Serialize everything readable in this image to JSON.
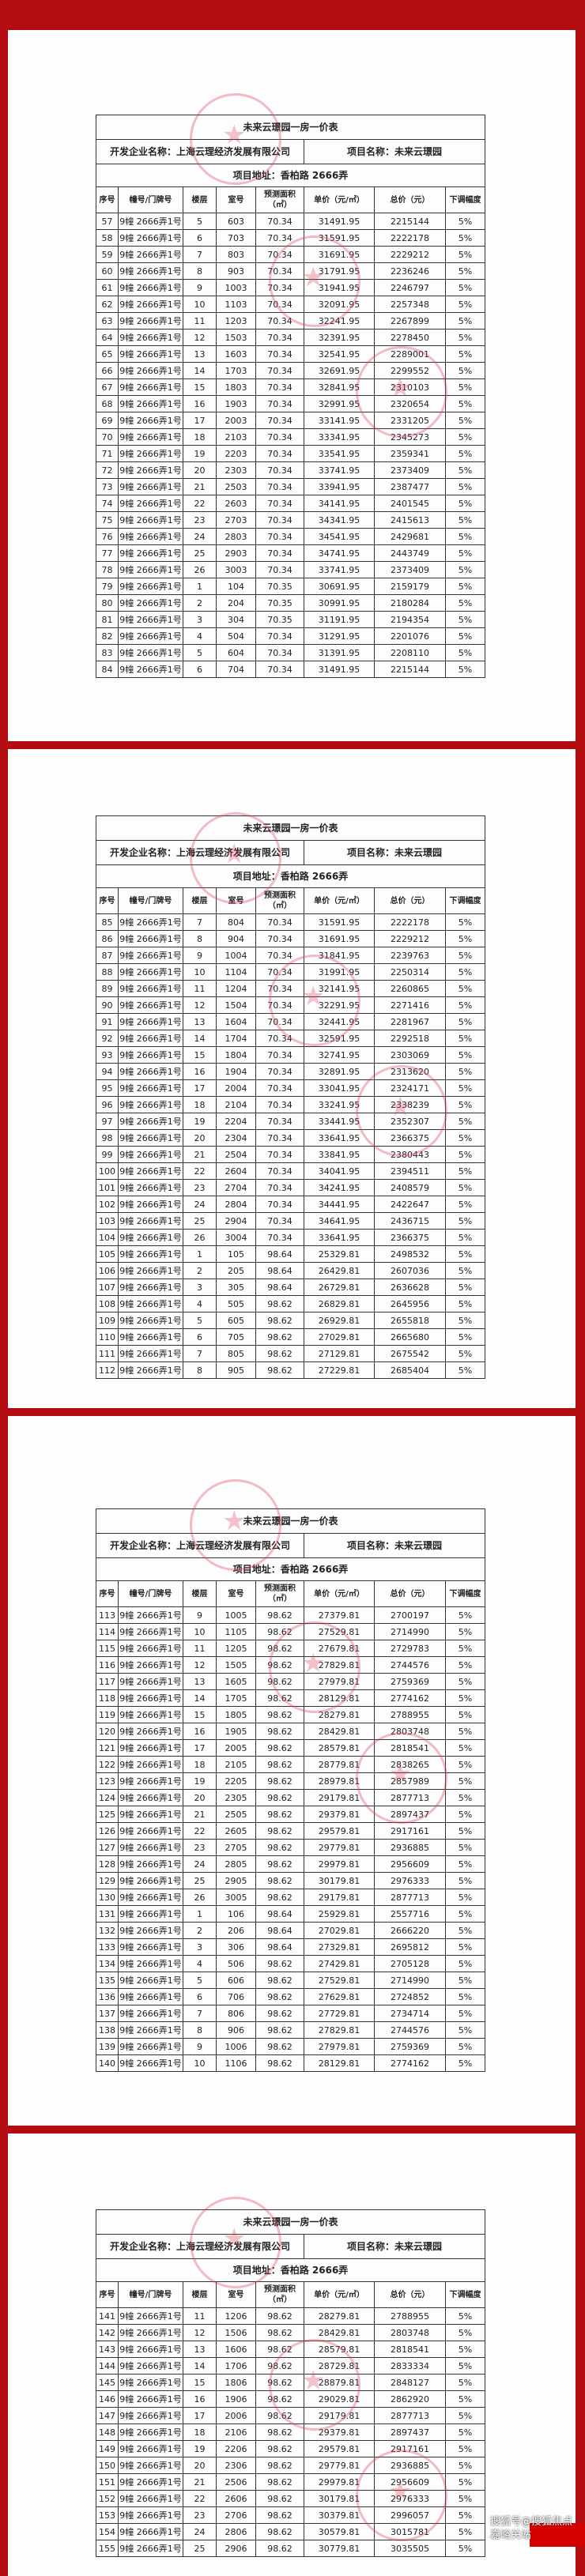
{
  "doc": {
    "title": "未来云璟园一房一价表",
    "developer": "开发企业名称：上海云理经济发展有限公司",
    "project": "项目名称：未来云璟园",
    "address": "项目地址：香柏路 2666弄",
    "columns": [
      "序号",
      "幢号/门牌号",
      "楼层",
      "室号",
      "预测面积（㎡）",
      "单价（元/㎡）",
      "总价（元）",
      "下调幅度"
    ]
  },
  "watermark": "搜狐号@搜狐焦点嘉峪关站",
  "colors": {
    "background": "#b30c10",
    "stamp": "#dc3c50"
  },
  "pages": [
    {
      "rows": [
        [
          "57",
          "9幢 2666弄1号",
          "5",
          "603",
          "70.34",
          "31491.95",
          "2215144",
          "5%"
        ],
        [
          "58",
          "9幢 2666弄1号",
          "6",
          "703",
          "70.34",
          "31591.95",
          "2222178",
          "5%"
        ],
        [
          "59",
          "9幢 2666弄1号",
          "7",
          "803",
          "70.34",
          "31691.95",
          "2229212",
          "5%"
        ],
        [
          "60",
          "9幢 2666弄1号",
          "8",
          "903",
          "70.34",
          "31791.95",
          "2236246",
          "5%"
        ],
        [
          "61",
          "9幢 2666弄1号",
          "9",
          "1003",
          "70.34",
          "31941.95",
          "2246797",
          "5%"
        ],
        [
          "62",
          "9幢 2666弄1号",
          "10",
          "1103",
          "70.34",
          "32091.95",
          "2257348",
          "5%"
        ],
        [
          "63",
          "9幢 2666弄1号",
          "11",
          "1203",
          "70.34",
          "32241.95",
          "2267899",
          "5%"
        ],
        [
          "64",
          "9幢 2666弄1号",
          "12",
          "1503",
          "70.34",
          "32391.95",
          "2278450",
          "5%"
        ],
        [
          "65",
          "9幢 2666弄1号",
          "13",
          "1603",
          "70.34",
          "32541.95",
          "2289001",
          "5%"
        ],
        [
          "66",
          "9幢 2666弄1号",
          "14",
          "1703",
          "70.34",
          "32691.95",
          "2299552",
          "5%"
        ],
        [
          "67",
          "9幢 2666弄1号",
          "15",
          "1803",
          "70.34",
          "32841.95",
          "2310103",
          "5%"
        ],
        [
          "68",
          "9幢 2666弄1号",
          "16",
          "1903",
          "70.34",
          "32991.95",
          "2320654",
          "5%"
        ],
        [
          "69",
          "9幢 2666弄1号",
          "17",
          "2003",
          "70.34",
          "33141.95",
          "2331205",
          "5%"
        ],
        [
          "70",
          "9幢 2666弄1号",
          "18",
          "2103",
          "70.34",
          "33341.95",
          "2345273",
          "5%"
        ],
        [
          "71",
          "9幢 2666弄1号",
          "19",
          "2203",
          "70.34",
          "33541.95",
          "2359341",
          "5%"
        ],
        [
          "72",
          "9幢 2666弄1号",
          "20",
          "2303",
          "70.34",
          "33741.95",
          "2373409",
          "5%"
        ],
        [
          "73",
          "9幢 2666弄1号",
          "21",
          "2503",
          "70.34",
          "33941.95",
          "2387477",
          "5%"
        ],
        [
          "74",
          "9幢 2666弄1号",
          "22",
          "2603",
          "70.34",
          "34141.95",
          "2401545",
          "5%"
        ],
        [
          "75",
          "9幢 2666弄1号",
          "23",
          "2703",
          "70.34",
          "34341.95",
          "2415613",
          "5%"
        ],
        [
          "76",
          "9幢 2666弄1号",
          "24",
          "2803",
          "70.34",
          "34541.95",
          "2429681",
          "5%"
        ],
        [
          "77",
          "9幢 2666弄1号",
          "25",
          "2903",
          "70.34",
          "34741.95",
          "2443749",
          "5%"
        ],
        [
          "78",
          "9幢 2666弄1号",
          "26",
          "3003",
          "70.34",
          "33741.95",
          "2373409",
          "5%"
        ],
        [
          "79",
          "9幢 2666弄1号",
          "1",
          "104",
          "70.35",
          "30691.95",
          "2159179",
          "5%"
        ],
        [
          "80",
          "9幢 2666弄1号",
          "2",
          "204",
          "70.35",
          "30991.95",
          "2180284",
          "5%"
        ],
        [
          "81",
          "9幢 2666弄1号",
          "3",
          "304",
          "70.35",
          "31191.95",
          "2194354",
          "5%"
        ],
        [
          "82",
          "9幢 2666弄1号",
          "4",
          "504",
          "70.34",
          "31291.95",
          "2201076",
          "5%"
        ],
        [
          "83",
          "9幢 2666弄1号",
          "5",
          "604",
          "70.34",
          "31391.95",
          "2208110",
          "5%"
        ],
        [
          "84",
          "9幢 2666弄1号",
          "6",
          "704",
          "70.34",
          "31491.95",
          "2215144",
          "5%"
        ]
      ]
    },
    {
      "rows": [
        [
          "85",
          "9幢 2666弄1号",
          "7",
          "804",
          "70.34",
          "31591.95",
          "2222178",
          "5%"
        ],
        [
          "86",
          "9幢 2666弄1号",
          "8",
          "904",
          "70.34",
          "31691.95",
          "2229212",
          "5%"
        ],
        [
          "87",
          "9幢 2666弄1号",
          "9",
          "1004",
          "70.34",
          "31841.95",
          "2239763",
          "5%"
        ],
        [
          "88",
          "9幢 2666弄1号",
          "10",
          "1104",
          "70.34",
          "31991.95",
          "2250314",
          "5%"
        ],
        [
          "89",
          "9幢 2666弄1号",
          "11",
          "1204",
          "70.34",
          "32141.95",
          "2260865",
          "5%"
        ],
        [
          "90",
          "9幢 2666弄1号",
          "12",
          "1504",
          "70.34",
          "32291.95",
          "2271416",
          "5%"
        ],
        [
          "91",
          "9幢 2666弄1号",
          "13",
          "1604",
          "70.34",
          "32441.95",
          "2281967",
          "5%"
        ],
        [
          "92",
          "9幢 2666弄1号",
          "14",
          "1704",
          "70.34",
          "32591.95",
          "2292518",
          "5%"
        ],
        [
          "93",
          "9幢 2666弄1号",
          "15",
          "1804",
          "70.34",
          "32741.95",
          "2303069",
          "5%"
        ],
        [
          "94",
          "9幢 2666弄1号",
          "16",
          "1904",
          "70.34",
          "32891.95",
          "2313620",
          "5%"
        ],
        [
          "95",
          "9幢 2666弄1号",
          "17",
          "2004",
          "70.34",
          "33041.95",
          "2324171",
          "5%"
        ],
        [
          "96",
          "9幢 2666弄1号",
          "18",
          "2104",
          "70.34",
          "33241.95",
          "2338239",
          "5%"
        ],
        [
          "97",
          "9幢 2666弄1号",
          "19",
          "2204",
          "70.34",
          "33441.95",
          "2352307",
          "5%"
        ],
        [
          "98",
          "9幢 2666弄1号",
          "20",
          "2304",
          "70.34",
          "33641.95",
          "2366375",
          "5%"
        ],
        [
          "99",
          "9幢 2666弄1号",
          "21",
          "2504",
          "70.34",
          "33841.95",
          "2380443",
          "5%"
        ],
        [
          "100",
          "9幢 2666弄1号",
          "22",
          "2604",
          "70.34",
          "34041.95",
          "2394511",
          "5%"
        ],
        [
          "101",
          "9幢 2666弄1号",
          "23",
          "2704",
          "70.34",
          "34241.95",
          "2408579",
          "5%"
        ],
        [
          "102",
          "9幢 2666弄1号",
          "24",
          "2804",
          "70.34",
          "34441.95",
          "2422647",
          "5%"
        ],
        [
          "103",
          "9幢 2666弄1号",
          "25",
          "2904",
          "70.34",
          "34641.95",
          "2436715",
          "5%"
        ],
        [
          "104",
          "9幢 2666弄1号",
          "26",
          "3004",
          "70.34",
          "33641.95",
          "2366375",
          "5%"
        ],
        [
          "105",
          "9幢 2666弄1号",
          "1",
          "105",
          "98.64",
          "25329.81",
          "2498532",
          "5%"
        ],
        [
          "106",
          "9幢 2666弄1号",
          "2",
          "205",
          "98.64",
          "26429.81",
          "2607036",
          "5%"
        ],
        [
          "107",
          "9幢 2666弄1号",
          "3",
          "305",
          "98.64",
          "26729.81",
          "2636628",
          "5%"
        ],
        [
          "108",
          "9幢 2666弄1号",
          "4",
          "505",
          "98.62",
          "26829.81",
          "2645956",
          "5%"
        ],
        [
          "109",
          "9幢 2666弄1号",
          "5",
          "605",
          "98.62",
          "26929.81",
          "2655818",
          "5%"
        ],
        [
          "110",
          "9幢 2666弄1号",
          "6",
          "705",
          "98.62",
          "27029.81",
          "2665680",
          "5%"
        ],
        [
          "111",
          "9幢 2666弄1号",
          "7",
          "805",
          "98.62",
          "27129.81",
          "2675542",
          "5%"
        ],
        [
          "112",
          "9幢 2666弄1号",
          "8",
          "905",
          "98.62",
          "27229.81",
          "2685404",
          "5%"
        ]
      ]
    },
    {
      "rows": [
        [
          "113",
          "9幢 2666弄1号",
          "9",
          "1005",
          "98.62",
          "27379.81",
          "2700197",
          "5%"
        ],
        [
          "114",
          "9幢 2666弄1号",
          "10",
          "1105",
          "98.62",
          "27529.81",
          "2714990",
          "5%"
        ],
        [
          "115",
          "9幢 2666弄1号",
          "11",
          "1205",
          "98.62",
          "27679.81",
          "2729783",
          "5%"
        ],
        [
          "116",
          "9幢 2666弄1号",
          "12",
          "1505",
          "98.62",
          "27829.81",
          "2744576",
          "5%"
        ],
        [
          "117",
          "9幢 2666弄1号",
          "13",
          "1605",
          "98.62",
          "27979.81",
          "2759369",
          "5%"
        ],
        [
          "118",
          "9幢 2666弄1号",
          "14",
          "1705",
          "98.62",
          "28129.81",
          "2774162",
          "5%"
        ],
        [
          "119",
          "9幢 2666弄1号",
          "15",
          "1805",
          "98.62",
          "28279.81",
          "2788955",
          "5%"
        ],
        [
          "120",
          "9幢 2666弄1号",
          "16",
          "1905",
          "98.62",
          "28429.81",
          "2803748",
          "5%"
        ],
        [
          "121",
          "9幢 2666弄1号",
          "17",
          "2005",
          "98.62",
          "28579.81",
          "2818541",
          "5%"
        ],
        [
          "122",
          "9幢 2666弄1号",
          "18",
          "2105",
          "98.62",
          "28779.81",
          "2838265",
          "5%"
        ],
        [
          "123",
          "9幢 2666弄1号",
          "19",
          "2205",
          "98.62",
          "28979.81",
          "2857989",
          "5%"
        ],
        [
          "124",
          "9幢 2666弄1号",
          "20",
          "2305",
          "98.62",
          "29179.81",
          "2877713",
          "5%"
        ],
        [
          "125",
          "9幢 2666弄1号",
          "21",
          "2505",
          "98.62",
          "29379.81",
          "2897437",
          "5%"
        ],
        [
          "126",
          "9幢 2666弄1号",
          "22",
          "2605",
          "98.62",
          "29579.81",
          "2917161",
          "5%"
        ],
        [
          "127",
          "9幢 2666弄1号",
          "23",
          "2705",
          "98.62",
          "29779.81",
          "2936885",
          "5%"
        ],
        [
          "128",
          "9幢 2666弄1号",
          "24",
          "2805",
          "98.62",
          "29979.81",
          "2956609",
          "5%"
        ],
        [
          "129",
          "9幢 2666弄1号",
          "25",
          "2905",
          "98.62",
          "30179.81",
          "2976333",
          "5%"
        ],
        [
          "130",
          "9幢 2666弄1号",
          "26",
          "3005",
          "98.62",
          "29179.81",
          "2877713",
          "5%"
        ],
        [
          "131",
          "9幢 2666弄1号",
          "1",
          "106",
          "98.64",
          "25929.81",
          "2557716",
          "5%"
        ],
        [
          "132",
          "9幢 2666弄1号",
          "2",
          "206",
          "98.64",
          "27029.81",
          "2666220",
          "5%"
        ],
        [
          "133",
          "9幢 2666弄1号",
          "3",
          "306",
          "98.64",
          "27329.81",
          "2695812",
          "5%"
        ],
        [
          "134",
          "9幢 2666弄1号",
          "4",
          "506",
          "98.62",
          "27429.81",
          "2705128",
          "5%"
        ],
        [
          "135",
          "9幢 2666弄1号",
          "5",
          "606",
          "98.62",
          "27529.81",
          "2714990",
          "5%"
        ],
        [
          "136",
          "9幢 2666弄1号",
          "6",
          "706",
          "98.62",
          "27629.81",
          "2724852",
          "5%"
        ],
        [
          "137",
          "9幢 2666弄1号",
          "7",
          "806",
          "98.62",
          "27729.81",
          "2734714",
          "5%"
        ],
        [
          "138",
          "9幢 2666弄1号",
          "8",
          "906",
          "98.62",
          "27829.81",
          "2744576",
          "5%"
        ],
        [
          "139",
          "9幢 2666弄1号",
          "9",
          "1006",
          "98.62",
          "27979.81",
          "2759369",
          "5%"
        ],
        [
          "140",
          "9幢 2666弄1号",
          "10",
          "1106",
          "98.62",
          "28129.81",
          "2774162",
          "5%"
        ]
      ]
    },
    {
      "rows": [
        [
          "141",
          "9幢 2666弄1号",
          "11",
          "1206",
          "98.62",
          "28279.81",
          "2788955",
          "5%"
        ],
        [
          "142",
          "9幢 2666弄1号",
          "12",
          "1506",
          "98.62",
          "28429.81",
          "2803748",
          "5%"
        ],
        [
          "143",
          "9幢 2666弄1号",
          "13",
          "1606",
          "98.62",
          "28579.81",
          "2818541",
          "5%"
        ],
        [
          "144",
          "9幢 2666弄1号",
          "14",
          "1706",
          "98.62",
          "28729.81",
          "2833334",
          "5%"
        ],
        [
          "145",
          "9幢 2666弄1号",
          "15",
          "1806",
          "98.62",
          "28879.81",
          "2848127",
          "5%"
        ],
        [
          "146",
          "9幢 2666弄1号",
          "16",
          "1906",
          "98.62",
          "29029.81",
          "2862920",
          "5%"
        ],
        [
          "147",
          "9幢 2666弄1号",
          "17",
          "2006",
          "98.62",
          "29179.81",
          "2877713",
          "5%"
        ],
        [
          "148",
          "9幢 2666弄1号",
          "18",
          "2106",
          "98.62",
          "29379.81",
          "2897437",
          "5%"
        ],
        [
          "149",
          "9幢 2666弄1号",
          "19",
          "2206",
          "98.62",
          "29579.81",
          "2917161",
          "5%"
        ],
        [
          "150",
          "9幢 2666弄1号",
          "20",
          "2306",
          "98.62",
          "29779.81",
          "2936885",
          "5%"
        ],
        [
          "151",
          "9幢 2666弄1号",
          "21",
          "2506",
          "98.62",
          "29979.81",
          "2956609",
          "5%"
        ],
        [
          "152",
          "9幢 2666弄1号",
          "22",
          "2606",
          "98.62",
          "30179.81",
          "2976333",
          "5%"
        ],
        [
          "153",
          "9幢 2666弄1号",
          "23",
          "2706",
          "98.62",
          "30379.81",
          "2996057",
          "5%"
        ],
        [
          "154",
          "9幢 2666弄1号",
          "24",
          "2806",
          "98.62",
          "30579.81",
          "3015781",
          "5%"
        ],
        [
          "155",
          "9幢 2666弄1号",
          "25",
          "2906",
          "98.62",
          "30779.81",
          "3035505",
          "5%"
        ]
      ]
    }
  ]
}
